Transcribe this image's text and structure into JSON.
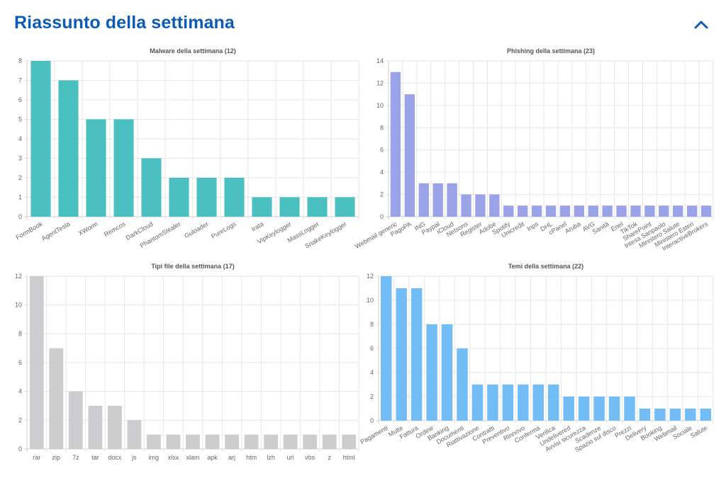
{
  "header": {
    "title": "Riassunto della settimana",
    "toggle_icon": "chevron-up-icon",
    "accent": "#0c5bb5"
  },
  "chart_data": [
    {
      "type": "bar",
      "title": "Malware della settimana (12)",
      "color": "#4bc0c0",
      "categories": [
        "FormBook",
        "AgentTesla",
        "XWorm",
        "Remcos",
        "DarkCloud",
        "PhantomStealer",
        "Guloader",
        "PureLogs",
        "Irata",
        "VipKeylogger",
        "MassLogger",
        "SnakeKeylogger"
      ],
      "values": [
        8,
        7,
        5,
        5,
        3,
        2,
        2,
        2,
        1,
        1,
        1,
        1
      ],
      "ylim": [
        0,
        8
      ],
      "yticks": [
        0,
        1,
        2,
        3,
        4,
        5,
        6,
        7,
        8
      ],
      "rotated_labels": true,
      "grid": true
    },
    {
      "type": "bar",
      "title": "Phishing della settimana (23)",
      "color": "#9aa2e8",
      "categories": [
        "Webmail generic",
        "PagoPA",
        "ING",
        "Paypal",
        "iCloud",
        "Netsons",
        "Register",
        "Adobe",
        "Spotify",
        "Unicredit",
        "Inps",
        "DHL",
        "cPanel",
        "Aruba",
        "AVG",
        "Sanità",
        "Enel",
        "TikTok",
        "SharePoint",
        "Intesa Sanpaolo",
        "Ministero Salute",
        "Ministero Esteri",
        "InteractiveBrokers"
      ],
      "values": [
        13,
        11,
        3,
        3,
        3,
        2,
        2,
        2,
        1,
        1,
        1,
        1,
        1,
        1,
        1,
        1,
        1,
        1,
        1,
        1,
        1,
        1,
        1
      ],
      "ylim": [
        0,
        14
      ],
      "yticks": [
        0,
        2,
        4,
        6,
        8,
        10,
        12,
        14
      ],
      "rotated_labels": true,
      "grid": true
    },
    {
      "type": "bar",
      "title": "Tipi file della settimana (17)",
      "color": "#cdcdd0",
      "categories": [
        "rar",
        "zip",
        "7z",
        "tar",
        "docx",
        "js",
        "img",
        "xlsx",
        "xlam",
        "apk",
        "arj",
        "htm",
        "lzh",
        "url",
        "vbs",
        "z",
        "html"
      ],
      "values": [
        12,
        7,
        4,
        3,
        3,
        2,
        1,
        1,
        1,
        1,
        1,
        1,
        1,
        1,
        1,
        1,
        1
      ],
      "ylim": [
        0,
        12
      ],
      "yticks": [
        0,
        2,
        4,
        6,
        8,
        10,
        12
      ],
      "rotated_labels": false,
      "grid": true
    },
    {
      "type": "bar",
      "title": "Temi della settimana (22)",
      "color": "#72bdf6",
      "categories": [
        "Pagamenti",
        "Multe",
        "Fattura",
        "Ordine",
        "Banking",
        "Documenti",
        "Riattivazione",
        "Contratti",
        "Preventivo",
        "Rinnovo",
        "Conferma",
        "Verifica",
        "Undelivered",
        "Avvisi sicurezza",
        "Scadenze",
        "Spazio sul disco",
        "Prezzi",
        "Delivery",
        "Booking",
        "Webmail",
        "Sociale",
        "Salute"
      ],
      "values": [
        12,
        11,
        11,
        8,
        8,
        6,
        3,
        3,
        3,
        3,
        3,
        3,
        2,
        2,
        2,
        2,
        2,
        1,
        1,
        1,
        1,
        1
      ],
      "ylim": [
        0,
        12
      ],
      "yticks": [
        0,
        2,
        4,
        6,
        8,
        10,
        12
      ],
      "rotated_labels": true,
      "grid": true
    }
  ]
}
